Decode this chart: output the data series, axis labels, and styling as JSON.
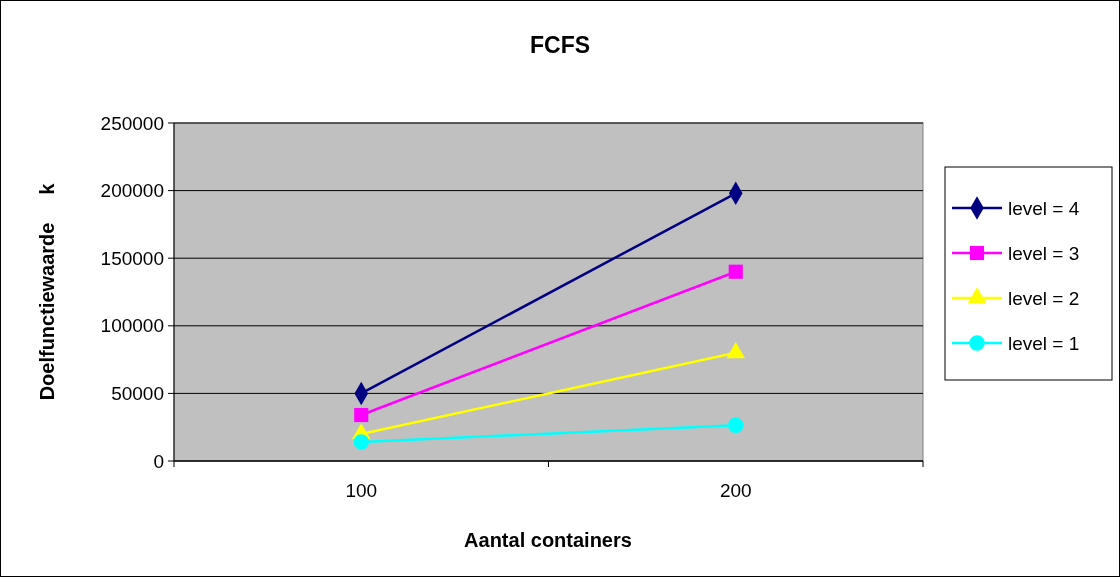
{
  "chart_data": {
    "type": "line",
    "title": "FCFS",
    "xlabel": "Aantal containers",
    "ylabel": "Doelfunctiewaarde     k",
    "categories": [
      "100",
      "200"
    ],
    "series": [
      {
        "name": "level = 4",
        "color": "#000080",
        "marker": "diamond",
        "values": [
          50000,
          198000
        ]
      },
      {
        "name": "level = 3",
        "color": "#ff00ff",
        "marker": "square",
        "values": [
          34000,
          140000
        ]
      },
      {
        "name": "level = 2",
        "color": "#ffff00",
        "marker": "triangle",
        "values": [
          20000,
          80000
        ]
      },
      {
        "name": "level = 1",
        "color": "#00ffff",
        "marker": "circle",
        "values": [
          14000,
          26500
        ]
      }
    ],
    "ylim": [
      0,
      250000
    ],
    "yticks": [
      0,
      50000,
      100000,
      150000,
      200000,
      250000
    ],
    "grid": "y",
    "legend": "right"
  }
}
